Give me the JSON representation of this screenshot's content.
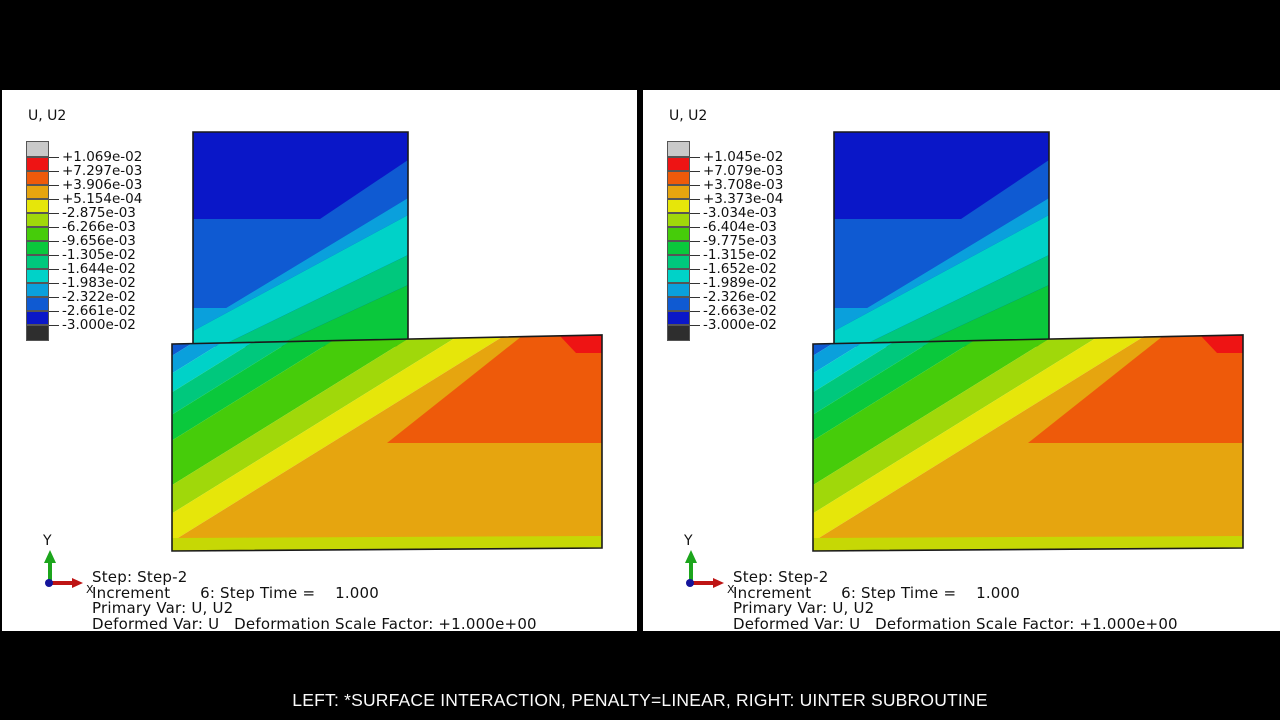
{
  "window": {
    "background": "#000000",
    "viewport_background": "#ffffff"
  },
  "caption": "LEFT: *SURFACE INTERACTION, PENALTY=LINEAR, RIGHT: UINTER SUBROUTINE",
  "palette": {
    "above_max_swatch": "#C9C9C9",
    "below_min_swatch": "#2E2E2E",
    "bands_max_to_min": [
      "#EE1414",
      "#EE5A0A",
      "#E6A50F",
      "#E6E60A",
      "#A0D80A",
      "#46CC0A",
      "#0AC83C",
      "#00C87D",
      "#00D2C8",
      "#0AA0DC",
      "#0F5AD2",
      "#0A17C8"
    ],
    "bottom_strip": "#C6D805",
    "outline": "#1a1a1a",
    "axis_y_arrow": "#1CA51C",
    "axis_x_arrow": "#BE1414",
    "axis_origin_dot": "#14149B"
  },
  "panels": [
    {
      "id": "left",
      "contour_title": "U, U2",
      "legend_values": [
        "+1.069e-02",
        "+7.297e-03",
        "+3.906e-03",
        "+5.154e-04",
        "-2.875e-03",
        "-6.266e-03",
        "-9.656e-03",
        "-1.305e-02",
        "-1.644e-02",
        "-1.983e-02",
        "-2.322e-02",
        "-2.661e-02",
        "-3.000e-02"
      ],
      "axis_labels": {
        "x": "X",
        "y": "Y"
      },
      "step_lines": [
        "Step: Step-2",
        "Increment      6: Step Time =    1.000",
        "Primary Var: U, U2",
        "Deformed Var: U   Deformation Scale Factor: +1.000e+00"
      ]
    },
    {
      "id": "right",
      "contour_title": "U, U2",
      "legend_values": [
        "+1.045e-02",
        "+7.079e-03",
        "+3.708e-03",
        "+3.373e-04",
        "-3.034e-03",
        "-6.404e-03",
        "-9.775e-03",
        "-1.315e-02",
        "-1.652e-02",
        "-1.989e-02",
        "-2.326e-02",
        "-2.663e-02",
        "-3.000e-02"
      ],
      "axis_labels": {
        "x": "X",
        "y": "Y"
      },
      "step_lines": [
        "Step: Step-2",
        "Increment      6: Step Time =    1.000",
        "Primary Var: U, U2",
        "Deformed Var: U   Deformation Scale Factor: +1.000e+00"
      ]
    }
  ]
}
